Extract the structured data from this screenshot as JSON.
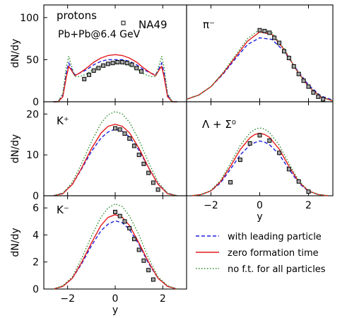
{
  "chart_data": [
    {
      "type": "line",
      "panel_label": "protons",
      "annotation": "Pb+Pb@6.4 GeV",
      "data_legend_label": "NA49",
      "xlim": [
        -3,
        3
      ],
      "ylim": [
        0,
        115
      ],
      "xticks": [
        -2,
        0,
        2
      ],
      "yticks": [
        0,
        50,
        100
      ],
      "ylabel": "dN/dy",
      "x": [
        -2.6,
        -2.4,
        -2.2,
        -2.05,
        -1.95,
        -1.85,
        -1.7,
        -1.5,
        -1.2,
        -0.9,
        -0.6,
        -0.3,
        0,
        0.3,
        0.6,
        0.9,
        1.2,
        1.5,
        1.7,
        1.85,
        1.95,
        2.05,
        2.2,
        2.4,
        2.6
      ],
      "series": [
        {
          "name": "with leading particle",
          "color": "#1f1fdd",
          "dash": "dashed",
          "values": [
            0,
            0,
            8,
            35,
            46,
            40,
            32,
            34,
            38,
            44,
            48,
            50,
            50,
            50,
            48,
            44,
            38,
            34,
            32,
            40,
            46,
            35,
            8,
            0,
            0
          ]
        },
        {
          "name": "zero formation time",
          "color": "#e31a1c",
          "dash": "solid",
          "values": [
            0,
            0,
            6,
            30,
            42,
            38,
            31,
            34,
            40,
            47,
            52,
            55,
            56,
            55,
            52,
            47,
            40,
            34,
            31,
            38,
            42,
            30,
            6,
            0,
            0
          ]
        },
        {
          "name": "no f.t. for all particles",
          "color": "#2a8a2a",
          "dash": "dotted",
          "values": [
            0,
            0,
            10,
            42,
            54,
            44,
            30,
            30,
            33,
            39,
            43,
            45,
            46,
            45,
            43,
            39,
            33,
            30,
            30,
            44,
            54,
            42,
            10,
            0,
            0
          ]
        }
      ],
      "points": {
        "x": [
          -1.3,
          -1.1,
          -0.9,
          -0.7,
          -0.5,
          -0.3,
          -0.1,
          0.1,
          0.3,
          0.5,
          0.7,
          0.9,
          1.1
        ],
        "y": [
          27,
          32,
          37,
          40,
          43,
          45,
          46,
          47,
          47,
          46,
          44,
          40,
          36
        ]
      }
    },
    {
      "type": "line",
      "panel_label": "π⁻",
      "xlim": [
        -3,
        3
      ],
      "ylim": [
        0,
        115
      ],
      "xticks": [
        -2,
        0,
        2
      ],
      "xlabel": "y",
      "x": [
        -3,
        -2.5,
        -2,
        -1.5,
        -1,
        -0.5,
        0,
        0.5,
        1,
        1.5,
        2,
        2.5,
        3
      ],
      "series": [
        {
          "name": "with leading particle",
          "color": "#1f1fdd",
          "dash": "dashed",
          "values": [
            3,
            8,
            18,
            33,
            51,
            68,
            76,
            74,
            60,
            39,
            20,
            7,
            2
          ]
        },
        {
          "name": "zero formation time",
          "color": "#e31a1c",
          "dash": "solid",
          "values": [
            3,
            8,
            18,
            34,
            53,
            72,
            83,
            80,
            62,
            38,
            18,
            6,
            1
          ]
        },
        {
          "name": "no f.t. for all particles",
          "color": "#2a8a2a",
          "dash": "dotted",
          "values": [
            3,
            8,
            18,
            35,
            55,
            75,
            86,
            82,
            63,
            38,
            18,
            6,
            1
          ]
        }
      ],
      "points": {
        "x": [
          0,
          0.2,
          0.4,
          0.6,
          0.8,
          1.0,
          1.2,
          1.4,
          1.6,
          1.8,
          2.0,
          2.2,
          2.4,
          2.6
        ],
        "y": [
          85,
          84,
          82,
          76,
          70,
          60,
          52,
          42,
          33,
          25,
          18,
          11,
          6,
          3
        ]
      }
    },
    {
      "type": "line",
      "panel_label": "K⁺",
      "xlim": [
        -3,
        3
      ],
      "ylim": [
        0,
        23
      ],
      "xticks": [
        -2,
        0,
        2
      ],
      "yticks": [
        0,
        10,
        20
      ],
      "ylabel": "dN/dy",
      "x": [
        -2.6,
        -2.2,
        -1.8,
        -1.4,
        -1.0,
        -0.6,
        -0.3,
        0,
        0.3,
        0.6,
        1.0,
        1.4,
        1.8,
        2.2,
        2.6
      ],
      "series": [
        {
          "name": "with leading particle",
          "color": "#1f1fdd",
          "dash": "dashed",
          "values": [
            0,
            0.6,
            2.8,
            6.7,
            10.8,
            14.1,
            15.6,
            16.3,
            15.8,
            14.4,
            11.1,
            6.9,
            2.9,
            0.6,
            0
          ]
        },
        {
          "name": "zero formation time",
          "color": "#e31a1c",
          "dash": "solid",
          "values": [
            0,
            0.5,
            2.8,
            6.9,
            11.5,
            15.3,
            17.0,
            17.5,
            17.0,
            15.4,
            11.6,
            6.9,
            2.8,
            0.5,
            0
          ]
        },
        {
          "name": "no f.t. for all particles",
          "color": "#2a8a2a",
          "dash": "dotted",
          "values": [
            0,
            0.6,
            3.3,
            8.0,
            13.2,
            17.7,
            19.8,
            20.6,
            20.0,
            18.0,
            13.6,
            8.2,
            3.4,
            0.6,
            0
          ]
        }
      ],
      "points": {
        "x": [
          0,
          0.2,
          0.4,
          0.6,
          0.8,
          1.0,
          1.2,
          1.4,
          1.6,
          1.8
        ],
        "y": [
          16.5,
          16.2,
          15.2,
          14.0,
          12.2,
          10.0,
          7.8,
          5.6,
          3.2,
          1.5
        ]
      }
    },
    {
      "type": "line",
      "panel_label": "Λ + Σ⁰",
      "xlim": [
        -3,
        3
      ],
      "ylim": [
        0,
        23
      ],
      "xticks": [
        -2,
        0,
        2
      ],
      "xlabel": "y",
      "x": [
        -2.8,
        -2.4,
        -2.0,
        -1.6,
        -1.2,
        -0.8,
        -0.4,
        -0.2,
        0,
        0.2,
        0.4,
        0.8,
        1.2,
        1.6,
        2.0,
        2.4,
        2.8
      ],
      "series": [
        {
          "name": "with leading particle",
          "color": "#1f1fdd",
          "dash": "dashed",
          "values": [
            0,
            0.3,
            1.2,
            3.2,
            6.5,
            10.0,
            12.4,
            13.0,
            13.4,
            13.1,
            12.5,
            10.1,
            6.5,
            3.1,
            1.1,
            0.3,
            0
          ]
        },
        {
          "name": "zero formation time",
          "color": "#e31a1c",
          "dash": "solid",
          "values": [
            0,
            0.3,
            1.2,
            3.5,
            7.2,
            11.3,
            14.2,
            15.0,
            15.3,
            15.0,
            14.3,
            11.4,
            7.2,
            3.4,
            1.2,
            0.3,
            0
          ]
        },
        {
          "name": "no f.t. for all particles",
          "color": "#2a8a2a",
          "dash": "dotted",
          "values": [
            0,
            0.3,
            1.3,
            3.8,
            7.9,
            12.3,
            15.4,
            16.2,
            16.6,
            16.3,
            15.5,
            12.4,
            7.9,
            3.7,
            1.2,
            0.3,
            0
          ]
        }
      ],
      "points": {
        "x": [
          -1.2,
          -0.8,
          -0.4,
          0,
          0.4,
          0.8,
          1.2,
          1.6,
          2.0
        ],
        "y": [
          3.3,
          8.8,
          12.8,
          14.8,
          13.5,
          10.5,
          6.5,
          3.5,
          1.0
        ]
      }
    },
    {
      "type": "line",
      "panel_label": "K⁻",
      "xlim": [
        -3,
        3
      ],
      "ylim": [
        0,
        6.9
      ],
      "xticks": [
        -2,
        0,
        2
      ],
      "yticks": [
        0,
        2,
        4,
        6
      ],
      "ylabel": "dN/dy",
      "xlabel": "y",
      "x": [
        -2.6,
        -2.2,
        -1.8,
        -1.4,
        -1.0,
        -0.6,
        -0.3,
        0,
        0.3,
        0.6,
        1.0,
        1.4,
        1.8,
        2.2,
        2.6
      ],
      "series": [
        {
          "name": "with leading particle",
          "color": "#1f1fdd",
          "dash": "dashed",
          "values": [
            0,
            0.2,
            0.8,
            1.9,
            3.2,
            4.3,
            4.8,
            5.05,
            4.9,
            4.4,
            3.3,
            1.9,
            0.8,
            0.2,
            0
          ]
        },
        {
          "name": "zero formation time",
          "color": "#e31a1c",
          "dash": "solid",
          "values": [
            0,
            0.2,
            0.8,
            2.0,
            3.4,
            4.7,
            5.3,
            5.5,
            5.3,
            4.7,
            3.4,
            2.0,
            0.8,
            0.2,
            0
          ]
        },
        {
          "name": "no f.t. for all particles",
          "color": "#2a8a2a",
          "dash": "dotted",
          "values": [
            0,
            0.25,
            0.9,
            2.3,
            3.9,
            5.3,
            6.0,
            6.3,
            6.1,
            5.4,
            4.0,
            2.3,
            0.9,
            0.25,
            0
          ]
        }
      ],
      "points": {
        "x": [
          0,
          0.2,
          0.4,
          0.6,
          0.8,
          1.0,
          1.2,
          1.4,
          1.6
        ],
        "y": [
          5.7,
          5.4,
          5.0,
          4.5,
          3.7,
          2.9,
          2.1,
          1.4,
          0.7
        ]
      }
    }
  ],
  "legend": [
    {
      "label": "with leading particle",
      "color": "#1f1fdd",
      "dash": "dashed"
    },
    {
      "label": "zero formation time",
      "color": "#e31a1c",
      "dash": "solid"
    },
    {
      "label": "no f.t. for all particles",
      "color": "#2a8a2a",
      "dash": "dotted"
    }
  ]
}
